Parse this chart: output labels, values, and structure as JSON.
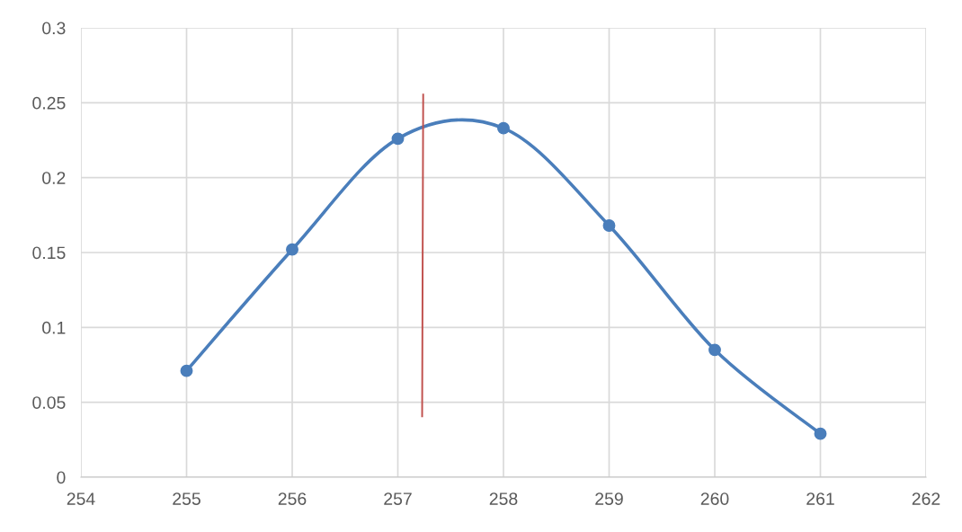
{
  "chart_data": {
    "type": "line",
    "xlim": [
      254,
      262
    ],
    "xticks": [
      254,
      255,
      256,
      257,
      258,
      259,
      260,
      261,
      262
    ],
    "ylim": [
      0,
      0.3
    ],
    "yticks": [
      0,
      0.05,
      0.1,
      0.15,
      0.2,
      0.25,
      0.3
    ],
    "grid": true,
    "marker": "circle",
    "line_style": "solid",
    "series": [
      {
        "color": "#4a7ebb",
        "x": [
          255,
          256,
          257,
          258,
          259,
          260,
          261
        ],
        "values": [
          0.071,
          0.152,
          0.226,
          0.233,
          0.168,
          0.085,
          0.029
        ]
      },
      {
        "color": "#c0504d",
        "marker": "none",
        "x": [
          257.24,
          257.23
        ],
        "values": [
          0.256,
          0.04
        ]
      }
    ]
  }
}
